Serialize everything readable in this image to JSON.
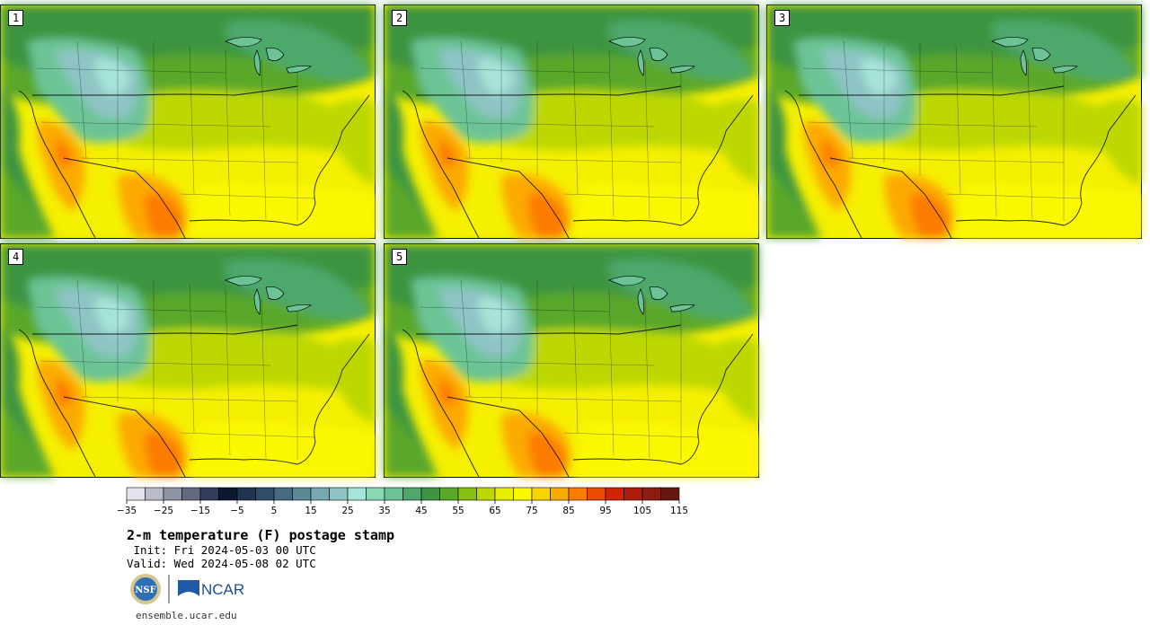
{
  "panels": [
    {
      "label": "1"
    },
    {
      "label": "2"
    },
    {
      "label": "3"
    },
    {
      "label": "4"
    },
    {
      "label": "5"
    }
  ],
  "colorbar": {
    "colors": [
      "#e4e4ec",
      "#b9bcc8",
      "#8e94a4",
      "#626a80",
      "#323c58",
      "#0c1830",
      "#1e3450",
      "#2f4c68",
      "#466a80",
      "#5c8896",
      "#76a8b0",
      "#8ec4c4",
      "#a6e4d8",
      "#88d8b4",
      "#6cc496",
      "#4ea86c",
      "#3c9440",
      "#5aa82a",
      "#88c012",
      "#bcd800",
      "#e8ee00",
      "#fcf800",
      "#fcd200",
      "#fcaa00",
      "#fc7c00",
      "#ec4c00",
      "#d22400",
      "#b01c0c",
      "#8c1c10",
      "#641810"
    ],
    "min": -35,
    "step": 5,
    "tick_labels": [
      "−35",
      "−25",
      "−15",
      "−5",
      "5",
      "15",
      "25",
      "35",
      "45",
      "55",
      "65",
      "75",
      "85",
      "95",
      "105",
      "115"
    ]
  },
  "title": "2-m temperature (F) postage stamp",
  "init": " Init: Fri 2024-05-03 00 UTC",
  "valid": "Valid: Wed 2024-05-08 02 UTC",
  "logos": {
    "nsf": "NSF",
    "ncar": "NCAR"
  },
  "url": "ensemble.ucar.edu"
}
